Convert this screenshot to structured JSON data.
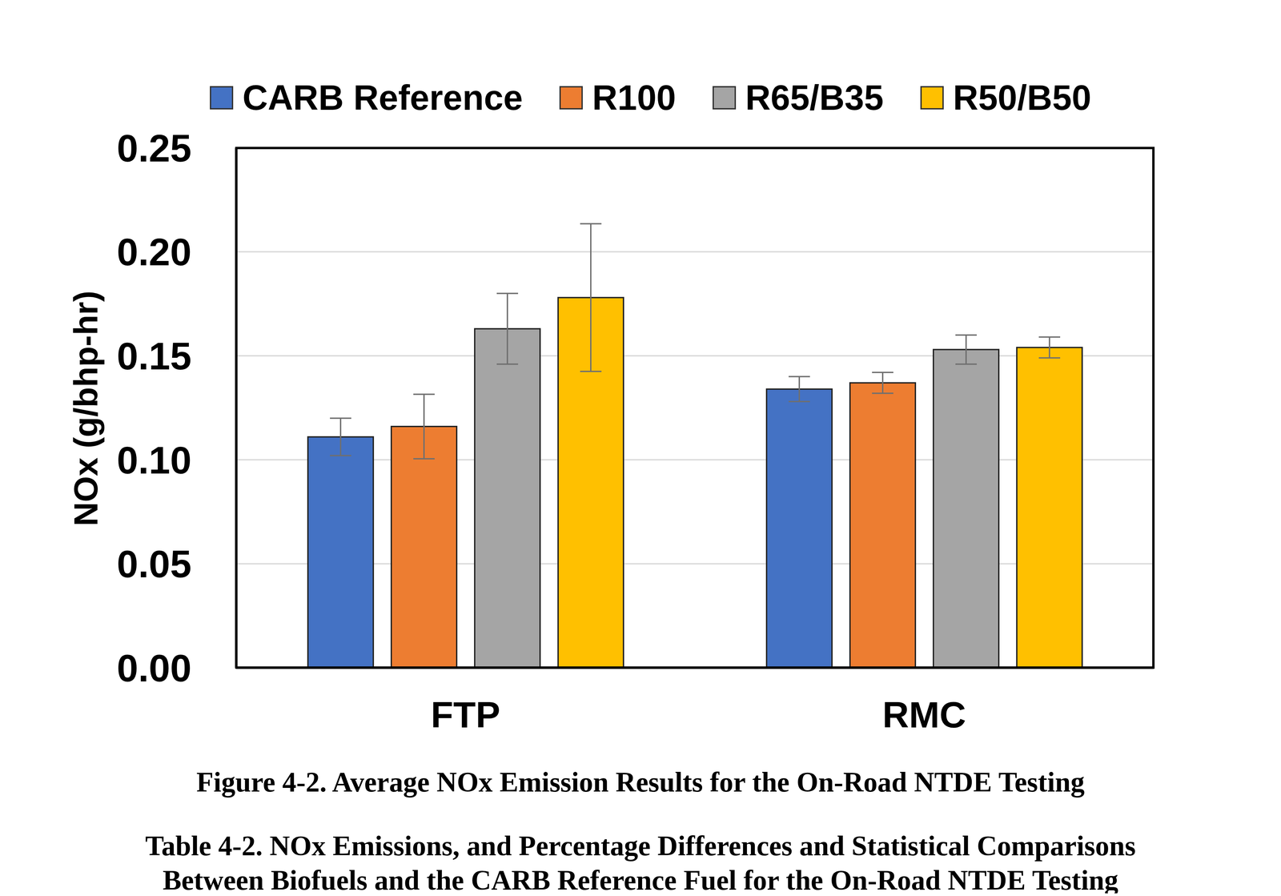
{
  "chart_data": {
    "type": "bar",
    "caption": "Figure 4-2. Average NOx Emission Results for the On-Road NTDE Testing",
    "annotations": [
      "Table 4-2. NOx Emissions, and Percentage Differences and Statistical Comparisons",
      "Between Biofuels and the CARB Reference Fuel for the On-Road NTDE Testing"
    ],
    "y_label": "NOx (g/bhp-hr)",
    "categories": [
      "FTP",
      "RMC"
    ],
    "series": [
      {
        "name": "CARB Reference",
        "color": "#4472C4",
        "values": [
          0.111,
          0.134
        ],
        "error": [
          0.009,
          0.006
        ]
      },
      {
        "name": "R100",
        "color": "#ED7D31",
        "values": [
          0.116,
          0.137
        ],
        "error": [
          0.0155,
          0.005
        ]
      },
      {
        "name": "R65/B35",
        "color": "#A5A5A5",
        "values": [
          0.163,
          0.153
        ],
        "error": [
          0.017,
          0.007
        ]
      },
      {
        "name": "R50/B50",
        "color": "#FFC000",
        "values": [
          0.178,
          0.154
        ],
        "error": [
          0.0355,
          0.005
        ]
      }
    ],
    "ylim": [
      0,
      0.25
    ],
    "yticks": [
      {
        "value": 0,
        "label": "0.00"
      },
      0.05,
      {
        "value": 0.1,
        "label": "0.10"
      },
      0.15,
      {
        "value": 0.2,
        "label": "0.20"
      },
      0.25
    ],
    "grid": true,
    "legend": "top"
  }
}
